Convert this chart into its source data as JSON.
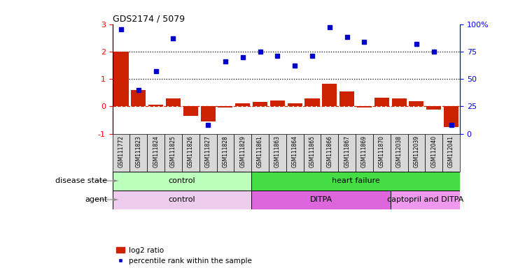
{
  "title": "GDS2174 / 5079",
  "samples": [
    "GSM111772",
    "GSM111823",
    "GSM111824",
    "GSM111825",
    "GSM111826",
    "GSM111827",
    "GSM111828",
    "GSM111829",
    "GSM111861",
    "GSM111863",
    "GSM111864",
    "GSM111865",
    "GSM111866",
    "GSM111867",
    "GSM111869",
    "GSM111870",
    "GSM112038",
    "GSM112039",
    "GSM112040",
    "GSM112041"
  ],
  "log2_ratio": [
    2.0,
    0.6,
    0.05,
    0.3,
    -0.35,
    -0.55,
    -0.05,
    0.1,
    0.15,
    0.2,
    0.1,
    0.28,
    0.82,
    0.55,
    -0.05,
    0.32,
    0.3,
    0.18,
    -0.12,
    -0.75
  ],
  "percentile_rank_pct": [
    95,
    40,
    57,
    87,
    null,
    8,
    66,
    70,
    75,
    71,
    62,
    71,
    97,
    88,
    84,
    null,
    null,
    82,
    75,
    8
  ],
  "bar_color": "#cc2200",
  "dot_color": "#0000cc",
  "dashed_line_color": "#cc2200",
  "ylim_left": [
    -1,
    3
  ],
  "ylim_right": [
    0,
    100
  ],
  "yticks_left": [
    -1,
    0,
    1,
    2,
    3
  ],
  "yticks_right": [
    0,
    25,
    50,
    75,
    100
  ],
  "ytick_labels_right": [
    "0",
    "25",
    "50",
    "75",
    "100%"
  ],
  "disease_state_groups": [
    {
      "label": "control",
      "start": 0,
      "end": 8,
      "color": "#bbffbb"
    },
    {
      "label": "heart failure",
      "start": 8,
      "end": 20,
      "color": "#44dd44"
    }
  ],
  "agent_groups": [
    {
      "label": "control",
      "start": 0,
      "end": 8,
      "color": "#eeccee"
    },
    {
      "label": "DITPA",
      "start": 8,
      "end": 16,
      "color": "#dd66dd"
    },
    {
      "label": "captopril and DITPA",
      "start": 16,
      "end": 20,
      "color": "#ee99ee"
    }
  ],
  "legend_bar_label": "log2 ratio",
  "legend_dot_label": "percentile rank within the sample"
}
